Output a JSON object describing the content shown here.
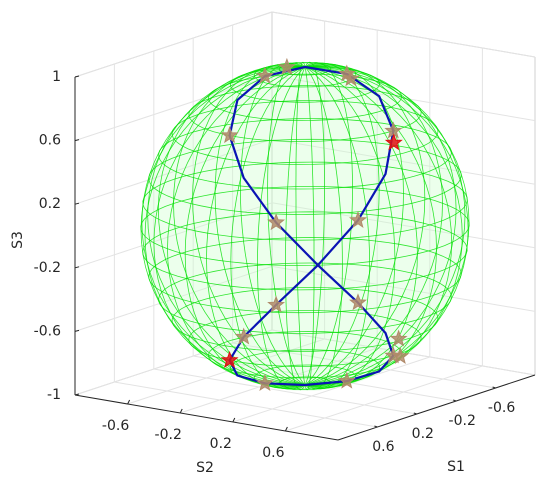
{
  "chart_data": {
    "type": "scatter3d",
    "xlabel": "S1",
    "ylabel": "S2",
    "zlabel": "S3",
    "xlim": [
      -1,
      1
    ],
    "ylim": [
      -1,
      1
    ],
    "zlim": [
      -1,
      1
    ],
    "xticks": [
      -0.6,
      -0.2,
      0.2,
      0.6
    ],
    "yticks": [
      -0.6,
      -0.2,
      0.2,
      0.6
    ],
    "zticks": [
      -1,
      -0.6,
      -0.2,
      0.2,
      0.6,
      1
    ],
    "grid": true,
    "sphere_color": "#00e000",
    "series": [
      {
        "type": "line",
        "color": "#0a14b4",
        "x": [
          0.75,
          0.535,
          0.277,
          0.045,
          -0.098,
          -0.115,
          0,
          0.215,
          0.473,
          0.705,
          0.849,
          0.865,
          0.75,
          0.535,
          0.277,
          0.045,
          -0.098,
          -0.115,
          0,
          0.215,
          0.473,
          0.705,
          0.849,
          0.865,
          0.75
        ],
        "y": [
          0.66,
          0.804,
          0.82,
          0.705,
          0.49,
          0.232,
          0,
          -0.144,
          -0.16,
          -0.045,
          0.17,
          0.428,
          0.66,
          0.804,
          0.82,
          0.705,
          0.49,
          0.232,
          0,
          -0.144,
          -0.16,
          -0.045,
          0.17,
          0.428,
          0.66
        ],
        "z": [
          0,
          0.259,
          0.5,
          0.707,
          0.866,
          0.966,
          1,
          0.966,
          0.866,
          0.707,
          0.5,
          0.259,
          0,
          -0.259,
          -0.5,
          -0.707,
          -0.866,
          -0.966,
          -1,
          -0.966,
          -0.866,
          -0.707,
          -0.5,
          -0.259,
          0
        ]
      },
      {
        "type": "scatter",
        "color": "#b08a6a",
        "x": [
          0.535,
          0.045,
          -0.115,
          0.215,
          0.705,
          0.865,
          0.535,
          0.045,
          -0.115,
          0.215,
          0.849,
          0.865,
          -0.6,
          -0.55,
          -0.35,
          -0.3
        ],
        "y": [
          0.804,
          0.705,
          0.232,
          -0.144,
          -0.045,
          0.428,
          0.804,
          0.705,
          0.232,
          -0.144,
          0.17,
          0.428,
          -0.1,
          0.3,
          -0.4,
          0.5
        ],
        "z": [
          0.259,
          0.707,
          0.966,
          0.966,
          0.707,
          0.259,
          -0.259,
          -0.707,
          -0.966,
          -0.966,
          -0.5,
          -0.259,
          0.79,
          -0.78,
          0.87,
          -0.81
        ]
      },
      {
        "type": "scatter",
        "color": "#e01010",
        "x": [
          0.1,
          0.705
        ],
        "y": [
          0.75,
          -0.045
        ],
        "z": [
          0.65,
          -0.707
        ]
      }
    ]
  }
}
